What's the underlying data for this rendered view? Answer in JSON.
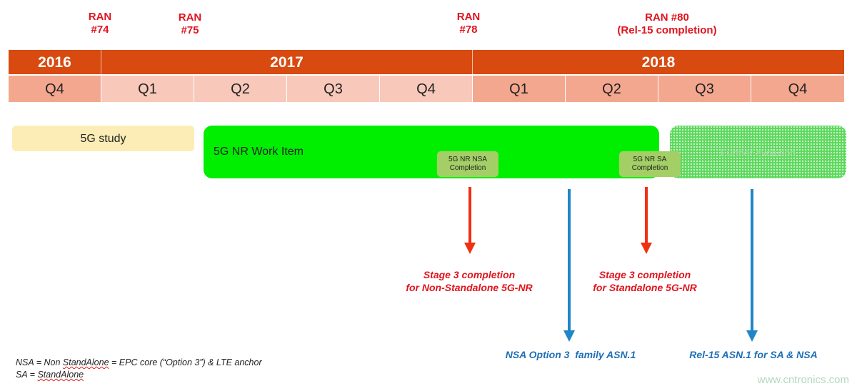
{
  "ran_meetings": [
    {
      "line1": "RAN",
      "line2": "#74"
    },
    {
      "line1": "RAN",
      "line2": "#75"
    },
    {
      "line1": "RAN",
      "line2": "#78"
    },
    {
      "line1": "RAN #80",
      "line2": "(Rel-15 completion)"
    }
  ],
  "years": [
    "2016",
    "2017",
    "2018"
  ],
  "quarters": [
    "Q4",
    "Q1",
    "Q2",
    "Q3",
    "Q4",
    "Q1",
    "Q2",
    "Q3",
    "Q4"
  ],
  "bars": {
    "study": "5G study",
    "work_item": "5G NR Work Item",
    "further": "Further evolution"
  },
  "milestones": [
    {
      "line1": "5G NR NSA",
      "line2": "Completion"
    },
    {
      "line1": "5G NR SA",
      "line2": "Completion"
    }
  ],
  "red_notes": [
    {
      "line1": "Stage 3 completion",
      "line2": "for Non-Standalone 5G-NR"
    },
    {
      "line1": "Stage 3 completion",
      "line2": "for Standalone 5G-NR"
    }
  ],
  "blue_notes": [
    "NSA Option 3  family ASN.1",
    "Rel-15 ASN.1 for SA & NSA"
  ],
  "legend": {
    "l1a": "NSA = Non ",
    "l1b": "StandAlone",
    "l1c": " = EPC core (“Option 3”) & LTE anchor",
    "l2a": "SA = ",
    "l2b": "StandAlone"
  },
  "watermark": "www.cntronics.com",
  "colors": {
    "year": "#d84a10",
    "quarter_dark": "#f4a78f",
    "quarter_light": "#f8c9ba",
    "work_item": "#00ee00",
    "study": "#fbedb5",
    "red": "#e0141e",
    "blue": "#1f6fb5"
  }
}
